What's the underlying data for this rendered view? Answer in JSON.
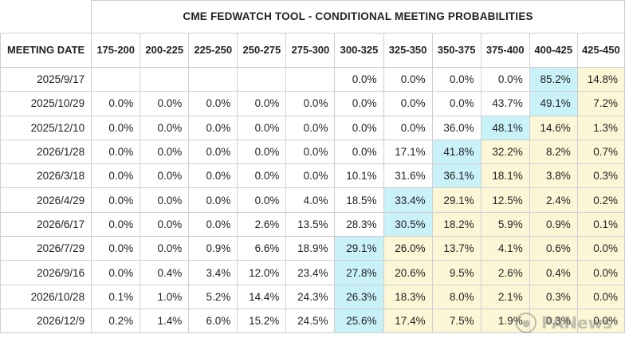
{
  "title": "CME FEDWATCH TOOL - CONDITIONAL MEETING PROBABILITIES",
  "header": {
    "meeting_date": "MEETING DATE",
    "ranges": [
      "175-200",
      "200-225",
      "225-250",
      "250-275",
      "275-300",
      "300-325",
      "325-350",
      "350-375",
      "375-400",
      "400-425",
      "425-450"
    ]
  },
  "rows": [
    {
      "date": "2025/9/17",
      "values": [
        "",
        "",
        "",
        "",
        "",
        "0.0%",
        "0.0%",
        "0.0%",
        "0.0%",
        "85.2%",
        "14.8%"
      ],
      "highlight": [
        0,
        0,
        0,
        0,
        0,
        0,
        0,
        0,
        0,
        1,
        2
      ]
    },
    {
      "date": "2025/10/29",
      "values": [
        "0.0%",
        "0.0%",
        "0.0%",
        "0.0%",
        "0.0%",
        "0.0%",
        "0.0%",
        "0.0%",
        "43.7%",
        "49.1%",
        "7.2%"
      ],
      "highlight": [
        0,
        0,
        0,
        0,
        0,
        0,
        0,
        0,
        0,
        1,
        2
      ]
    },
    {
      "date": "2025/12/10",
      "values": [
        "0.0%",
        "0.0%",
        "0.0%",
        "0.0%",
        "0.0%",
        "0.0%",
        "0.0%",
        "36.0%",
        "48.1%",
        "14.6%",
        "1.3%"
      ],
      "highlight": [
        0,
        0,
        0,
        0,
        0,
        0,
        0,
        0,
        1,
        2,
        2
      ]
    },
    {
      "date": "2026/1/28",
      "values": [
        "0.0%",
        "0.0%",
        "0.0%",
        "0.0%",
        "0.0%",
        "0.0%",
        "17.1%",
        "41.8%",
        "32.2%",
        "8.2%",
        "0.7%"
      ],
      "highlight": [
        0,
        0,
        0,
        0,
        0,
        0,
        0,
        1,
        2,
        2,
        2
      ]
    },
    {
      "date": "2026/3/18",
      "values": [
        "0.0%",
        "0.0%",
        "0.0%",
        "0.0%",
        "0.0%",
        "10.1%",
        "31.6%",
        "36.1%",
        "18.1%",
        "3.8%",
        "0.3%"
      ],
      "highlight": [
        0,
        0,
        0,
        0,
        0,
        0,
        0,
        1,
        2,
        2,
        2
      ]
    },
    {
      "date": "2026/4/29",
      "values": [
        "0.0%",
        "0.0%",
        "0.0%",
        "0.0%",
        "4.0%",
        "18.5%",
        "33.4%",
        "29.1%",
        "12.5%",
        "2.4%",
        "0.2%"
      ],
      "highlight": [
        0,
        0,
        0,
        0,
        0,
        0,
        1,
        2,
        2,
        2,
        2
      ]
    },
    {
      "date": "2026/6/17",
      "values": [
        "0.0%",
        "0.0%",
        "0.0%",
        "2.6%",
        "13.5%",
        "28.3%",
        "30.5%",
        "18.2%",
        "5.9%",
        "0.9%",
        "0.1%"
      ],
      "highlight": [
        0,
        0,
        0,
        0,
        0,
        0,
        1,
        2,
        2,
        2,
        2
      ]
    },
    {
      "date": "2026/7/29",
      "values": [
        "0.0%",
        "0.0%",
        "0.9%",
        "6.6%",
        "18.9%",
        "29.1%",
        "26.0%",
        "13.7%",
        "4.1%",
        "0.6%",
        "0.0%"
      ],
      "highlight": [
        0,
        0,
        0,
        0,
        0,
        1,
        2,
        2,
        2,
        2,
        2
      ]
    },
    {
      "date": "2026/9/16",
      "values": [
        "0.0%",
        "0.4%",
        "3.4%",
        "12.0%",
        "23.4%",
        "27.8%",
        "20.6%",
        "9.5%",
        "2.6%",
        "0.4%",
        "0.0%"
      ],
      "highlight": [
        0,
        0,
        0,
        0,
        0,
        1,
        2,
        2,
        2,
        2,
        2
      ]
    },
    {
      "date": "2026/10/28",
      "values": [
        "0.1%",
        "1.0%",
        "5.2%",
        "14.4%",
        "24.3%",
        "26.3%",
        "18.3%",
        "8.0%",
        "2.1%",
        "0.3%",
        "0.0%"
      ],
      "highlight": [
        0,
        0,
        0,
        0,
        0,
        1,
        2,
        2,
        2,
        2,
        2
      ]
    },
    {
      "date": "2026/12/9",
      "values": [
        "0.2%",
        "1.4%",
        "6.0%",
        "15.2%",
        "24.5%",
        "25.6%",
        "17.4%",
        "7.5%",
        "1.9%",
        "0.3%",
        "0.0%"
      ],
      "highlight": [
        0,
        0,
        0,
        0,
        0,
        1,
        2,
        2,
        2,
        2,
        2
      ]
    }
  ],
  "colors": {
    "target_highlight": "#c8f1f8",
    "above_target": "#fbf7d6"
  },
  "watermark": {
    "text": "PANews",
    "icon": "panews-logo-icon"
  }
}
